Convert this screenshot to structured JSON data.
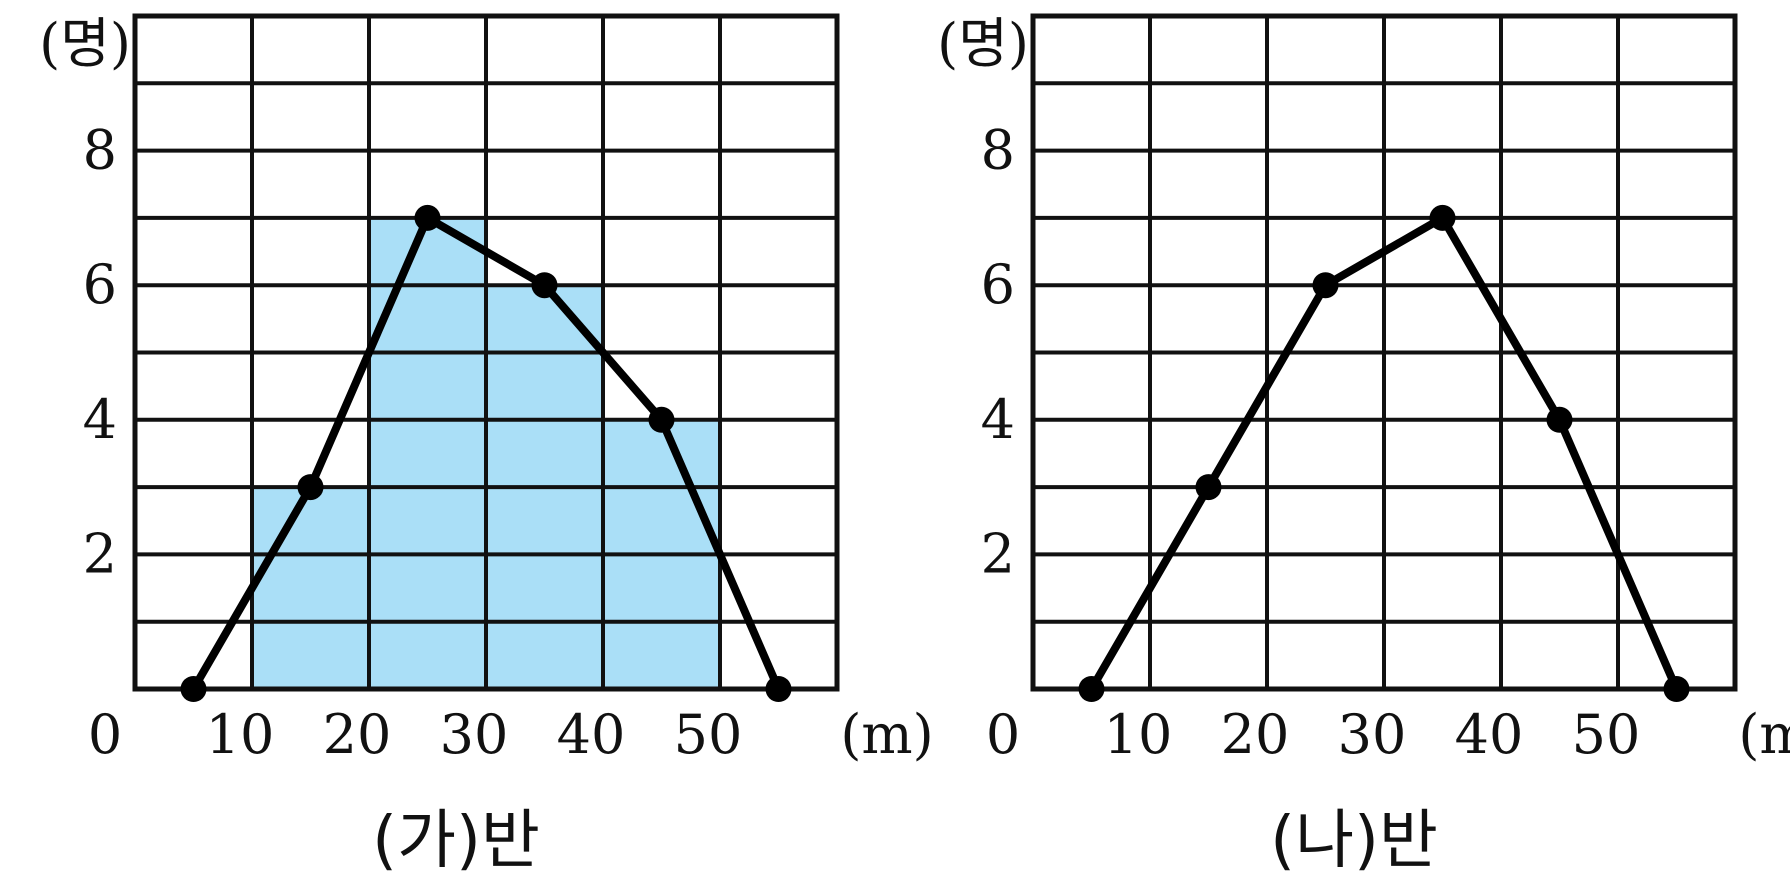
{
  "chart_data": [
    {
      "type": "line",
      "subtype": "histogram with frequency polygon",
      "title": "(가)반",
      "xlabel": "(m)",
      "ylabel": "(명)",
      "xlim": [
        0,
        60
      ],
      "ylim": [
        0,
        10
      ],
      "x_ticks": [
        "0",
        "10",
        "20",
        "30",
        "40",
        "50"
      ],
      "y_ticks": [
        "2",
        "4",
        "6",
        "8"
      ],
      "grid": true,
      "histogram": {
        "bins": [
          [
            10,
            20
          ],
          [
            20,
            30
          ],
          [
            30,
            40
          ],
          [
            40,
            50
          ]
        ],
        "values": [
          3,
          7,
          6,
          4
        ],
        "color": "#aadff7"
      },
      "polygon": {
        "x": [
          5,
          15,
          25,
          35,
          45,
          55
        ],
        "y": [
          0,
          3,
          7,
          6,
          4,
          0
        ]
      }
    },
    {
      "type": "line",
      "subtype": "frequency polygon",
      "title": "(나)반",
      "xlabel": "(m)",
      "ylabel": "(명)",
      "xlim": [
        0,
        60
      ],
      "ylim": [
        0,
        10
      ],
      "x_ticks": [
        "0",
        "10",
        "20",
        "30",
        "40",
        "50"
      ],
      "y_ticks": [
        "2",
        "4",
        "6",
        "8"
      ],
      "grid": true,
      "polygon": {
        "x": [
          5,
          15,
          25,
          35,
          45,
          55
        ],
        "y": [
          0,
          3,
          6,
          7,
          4,
          0
        ]
      }
    }
  ]
}
